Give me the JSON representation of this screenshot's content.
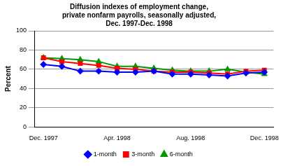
{
  "chart_data": {
    "type": "line",
    "title": [
      "Diffusion indexes of employment change,",
      "private nonfarm payrolls, seasonally adjusted,",
      "Dec. 1997-Dec. 1998"
    ],
    "y_label": "Percent",
    "categories": [
      "Dec. 1997",
      null,
      null,
      null,
      "Apr. 1998",
      null,
      null,
      null,
      "Aug. 1998",
      null,
      null,
      null,
      "Dec. 1998"
    ],
    "series": [
      {
        "name": "1-month",
        "color": "#0000ff",
        "marker": "diamond",
        "values": [
          65,
          63,
          58,
          58,
          57,
          57,
          58,
          55,
          55,
          54,
          53,
          56,
          57
        ]
      },
      {
        "name": "3-month",
        "color": "#ff0000",
        "marker": "square",
        "values": [
          72,
          68,
          66,
          64,
          61,
          60,
          58,
          57,
          57,
          56,
          55,
          58,
          59
        ]
      },
      {
        "name": "6-month",
        "color": "#009900",
        "marker": "triangle",
        "values": [
          72,
          71,
          70,
          68,
          63,
          63,
          61,
          59,
          58,
          58,
          60,
          57,
          55
        ]
      }
    ],
    "ylim": [
      0,
      100
    ],
    "yticks": [
      0,
      20,
      40,
      60,
      80,
      100
    ],
    "grid": true,
    "legend": "bottom"
  }
}
